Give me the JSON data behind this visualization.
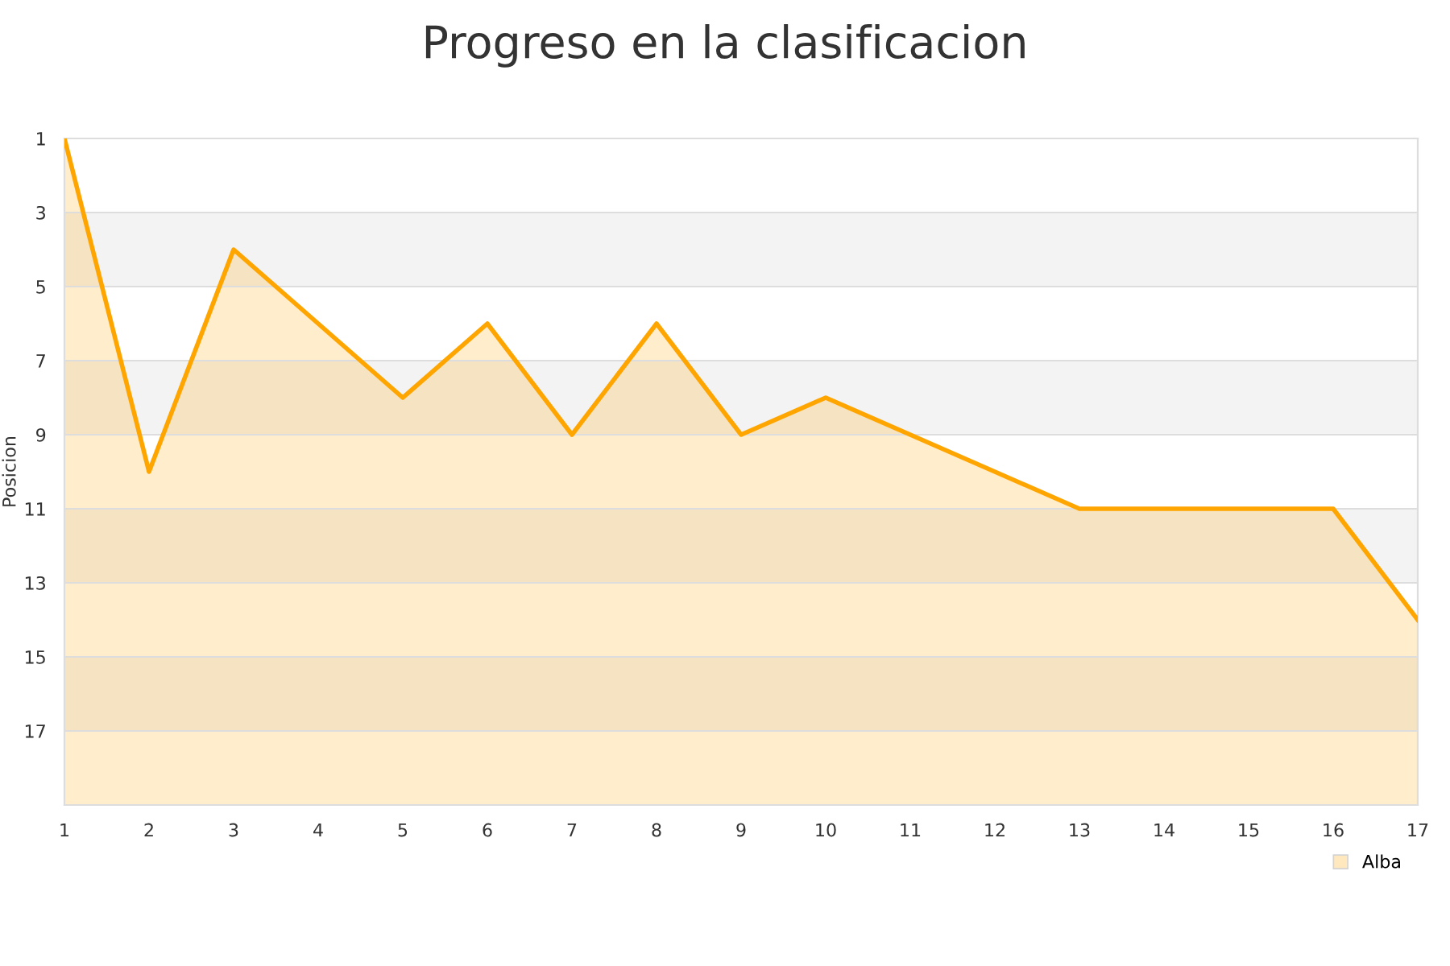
{
  "chart_data": {
    "type": "area",
    "title": "Progreso en la clasificacion",
    "ylabel": "Posicion",
    "x": [
      1,
      2,
      3,
      4,
      5,
      6,
      7,
      8,
      9,
      10,
      11,
      12,
      13,
      14,
      15,
      16,
      17
    ],
    "series": [
      {
        "name": "Alba",
        "color": "#ffa500",
        "values": [
          1,
          10,
          4,
          6,
          8,
          6,
          9,
          6,
          9,
          8,
          9,
          10,
          11,
          11,
          11,
          11,
          14
        ]
      }
    ],
    "xlim": [
      1,
      17
    ],
    "xticks": [
      1,
      2,
      3,
      4,
      5,
      6,
      7,
      8,
      9,
      10,
      11,
      12,
      13,
      14,
      15,
      16,
      17
    ],
    "ylim": [
      19,
      1
    ],
    "yticks": [
      1,
      3,
      5,
      7,
      9,
      11,
      13,
      15,
      17
    ],
    "bands": [
      {
        "axis": "y",
        "from": 3,
        "to": 5,
        "color": "#f3f3f3"
      },
      {
        "axis": "y",
        "from": 7,
        "to": 9,
        "color": "#f3f3f3"
      },
      {
        "axis": "y",
        "from": 11,
        "to": 13,
        "color": "#f3f3f3"
      },
      {
        "axis": "y",
        "from": 15,
        "to": 17,
        "color": "#f3f3f3"
      }
    ],
    "grid": "y",
    "legend": "bottom right"
  }
}
